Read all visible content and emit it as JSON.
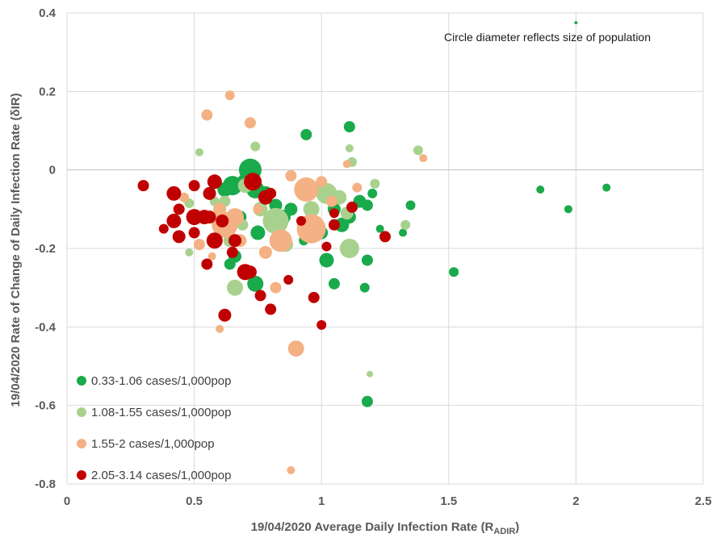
{
  "chart_data": {
    "type": "scatter",
    "xlabel_main": "19/04/2020 Average Daily Infection Rate (R",
    "xlabel_sub": "ADIR",
    "xlabel_end": ")",
    "ylabel": "19/04/2020 Rate of Change of Daily Infection Rate (δIR)",
    "xlim": [
      0,
      2.5
    ],
    "ylim": [
      -0.8,
      0.4
    ],
    "x_ticks": [
      "0",
      "0.5",
      "1",
      "1.5",
      "2",
      "2.5"
    ],
    "y_ticks": [
      "0.4",
      "0.2",
      "0",
      "-0.2",
      "-0.4",
      "-0.6",
      "-0.8"
    ],
    "grid": true,
    "legend_position": "bottom-left",
    "annotation": {
      "text": "Circle diameter reflects size of population",
      "x": 2.0,
      "y": 0.375
    },
    "series": [
      {
        "name": "0.33-1.06 cases/1,000pop",
        "color": "#19aa4b",
        "points": [
          [
            0.72,
            0.0,
            14
          ],
          [
            0.65,
            -0.04,
            12
          ],
          [
            0.62,
            -0.05,
            9
          ],
          [
            0.7,
            -0.03,
            10
          ],
          [
            0.74,
            -0.05,
            11
          ],
          [
            0.78,
            -0.06,
            9
          ],
          [
            0.82,
            -0.09,
            8
          ],
          [
            0.85,
            -0.12,
            9
          ],
          [
            0.68,
            -0.12,
            8
          ],
          [
            0.75,
            -0.16,
            9
          ],
          [
            0.66,
            -0.22,
            8
          ],
          [
            0.64,
            -0.24,
            7
          ],
          [
            0.74,
            -0.29,
            10
          ],
          [
            0.94,
            0.09,
            7
          ],
          [
            1.11,
            0.11,
            7
          ],
          [
            1.05,
            -0.1,
            8
          ],
          [
            1.0,
            -0.16,
            8
          ],
          [
            1.02,
            -0.23,
            9
          ],
          [
            1.05,
            -0.29,
            7
          ],
          [
            1.08,
            -0.14,
            9
          ],
          [
            1.11,
            -0.12,
            8
          ],
          [
            1.15,
            -0.08,
            8
          ],
          [
            1.18,
            -0.09,
            7
          ],
          [
            1.2,
            -0.06,
            6
          ],
          [
            1.18,
            -0.23,
            7
          ],
          [
            1.17,
            -0.3,
            6
          ],
          [
            1.23,
            -0.15,
            5
          ],
          [
            1.32,
            -0.16,
            5
          ],
          [
            1.35,
            -0.09,
            6
          ],
          [
            1.52,
            -0.26,
            6
          ],
          [
            1.18,
            -0.59,
            7
          ],
          [
            1.86,
            -0.05,
            5
          ],
          [
            1.97,
            -0.1,
            5
          ],
          [
            2.12,
            -0.045,
            5
          ],
          [
            0.93,
            -0.18,
            6
          ],
          [
            0.88,
            -0.1,
            8
          ],
          [
            2.0,
            0.375,
            2
          ]
        ]
      },
      {
        "name": "1.08-1.55 cases/1,000pop",
        "color": "#a9d18e",
        "points": [
          [
            0.52,
            0.045,
            5
          ],
          [
            0.74,
            0.06,
            6
          ],
          [
            0.48,
            -0.085,
            6
          ],
          [
            0.62,
            -0.08,
            7
          ],
          [
            0.7,
            -0.04,
            9
          ],
          [
            0.76,
            -0.1,
            9
          ],
          [
            0.82,
            -0.13,
            16
          ],
          [
            0.86,
            -0.19,
            9
          ],
          [
            0.6,
            -0.13,
            10
          ],
          [
            0.64,
            -0.18,
            8
          ],
          [
            0.66,
            -0.3,
            10
          ],
          [
            0.48,
            -0.21,
            5
          ],
          [
            0.96,
            -0.05,
            10
          ],
          [
            1.02,
            -0.06,
            13
          ],
          [
            0.96,
            -0.1,
            10
          ],
          [
            1.07,
            -0.07,
            9
          ],
          [
            1.11,
            -0.2,
            12
          ],
          [
            1.1,
            -0.11,
            8
          ],
          [
            1.12,
            0.02,
            6
          ],
          [
            1.11,
            0.055,
            5
          ],
          [
            1.21,
            -0.035,
            6
          ],
          [
            1.33,
            -0.14,
            6
          ],
          [
            1.38,
            0.05,
            6
          ],
          [
            1.19,
            -0.52,
            4
          ],
          [
            0.58,
            -0.08,
            6
          ],
          [
            0.69,
            -0.14,
            7
          ]
        ]
      },
      {
        "name": "1.55-2 cases/1,000pop",
        "color": "#f4b183",
        "points": [
          [
            0.64,
            0.19,
            6
          ],
          [
            0.55,
            0.14,
            7
          ],
          [
            0.72,
            0.12,
            7
          ],
          [
            0.46,
            -0.07,
            6
          ],
          [
            0.52,
            -0.19,
            7
          ],
          [
            0.62,
            -0.14,
            16
          ],
          [
            0.66,
            -0.12,
            11
          ],
          [
            0.68,
            -0.18,
            8
          ],
          [
            0.6,
            -0.1,
            8
          ],
          [
            0.84,
            -0.18,
            14
          ],
          [
            0.78,
            -0.21,
            8
          ],
          [
            0.82,
            -0.3,
            7
          ],
          [
            0.88,
            -0.015,
            7
          ],
          [
            0.94,
            -0.05,
            15
          ],
          [
            0.96,
            -0.15,
            18
          ],
          [
            1.0,
            -0.03,
            7
          ],
          [
            1.04,
            -0.08,
            7
          ],
          [
            1.1,
            0.015,
            5
          ],
          [
            1.14,
            -0.045,
            6
          ],
          [
            1.4,
            0.03,
            5
          ],
          [
            0.9,
            -0.455,
            10
          ],
          [
            0.88,
            -0.765,
            5
          ],
          [
            0.6,
            -0.405,
            5
          ],
          [
            0.57,
            -0.22,
            5
          ],
          [
            0.75,
            -0.1,
            6
          ]
        ]
      },
      {
        "name": "2.05-3.14 cases/1,000pop",
        "color": "#c00000",
        "points": [
          [
            0.3,
            -0.04,
            7
          ],
          [
            0.38,
            -0.15,
            6
          ],
          [
            0.42,
            -0.06,
            9
          ],
          [
            0.44,
            -0.1,
            7
          ],
          [
            0.42,
            -0.13,
            9
          ],
          [
            0.44,
            -0.17,
            8
          ],
          [
            0.5,
            -0.12,
            10
          ],
          [
            0.5,
            -0.04,
            7
          ],
          [
            0.54,
            -0.12,
            9
          ],
          [
            0.56,
            -0.12,
            8
          ],
          [
            0.56,
            -0.06,
            8
          ],
          [
            0.58,
            -0.18,
            10
          ],
          [
            0.58,
            -0.03,
            9
          ],
          [
            0.61,
            -0.13,
            8
          ],
          [
            0.55,
            -0.24,
            7
          ],
          [
            0.66,
            -0.18,
            8
          ],
          [
            0.65,
            -0.21,
            7
          ],
          [
            0.7,
            -0.26,
            10
          ],
          [
            0.72,
            -0.26,
            8
          ],
          [
            0.73,
            -0.03,
            11
          ],
          [
            0.78,
            -0.07,
            9
          ],
          [
            0.8,
            -0.06,
            7
          ],
          [
            0.62,
            -0.37,
            8
          ],
          [
            0.76,
            -0.32,
            7
          ],
          [
            0.8,
            -0.355,
            7
          ],
          [
            0.87,
            -0.28,
            6
          ],
          [
            0.92,
            -0.13,
            6
          ],
          [
            0.97,
            -0.325,
            7
          ],
          [
            1.0,
            -0.395,
            6
          ],
          [
            1.02,
            -0.195,
            6
          ],
          [
            1.05,
            -0.11,
            6
          ],
          [
            1.05,
            -0.14,
            7
          ],
          [
            1.12,
            -0.095,
            7
          ],
          [
            1.25,
            -0.17,
            7
          ],
          [
            0.5,
            -0.16,
            7
          ]
        ]
      }
    ]
  }
}
